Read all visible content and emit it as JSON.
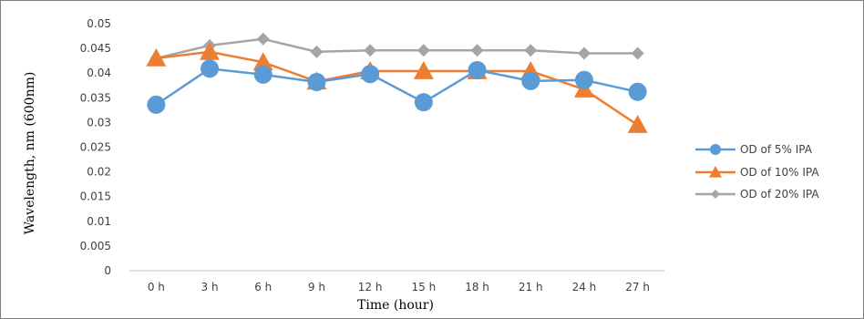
{
  "chart_data": {
    "type": "line",
    "title": "",
    "xlabel": "Time (hour)",
    "ylabel": "Wavelength, nm (600nm)",
    "categories": [
      "0 h",
      "3 h",
      "6 h",
      "9 h",
      "12 h",
      "15 h",
      "18 h",
      "21 h",
      "24 h",
      "27 h"
    ],
    "ylim": [
      0,
      0.05
    ],
    "yticks": [
      "0",
      "0.005",
      "0.01",
      "0.015",
      "0.02",
      "0.025",
      "0.03",
      "0.035",
      "0.04",
      "0.045",
      "0.05"
    ],
    "grid": false,
    "legend_position": "right",
    "series": [
      {
        "name": "OD of 5% IPA",
        "color": "#5b9bd5",
        "marker": "circle",
        "values": [
          0.0336,
          0.0409,
          0.0397,
          0.0382,
          0.0398,
          0.0341,
          0.0406,
          0.0384,
          0.0386,
          0.0362
        ]
      },
      {
        "name": "OD of 10% IPA",
        "color": "#ed7d31",
        "marker": "triangle",
        "values": [
          0.043,
          0.0443,
          0.0422,
          0.0383,
          0.0404,
          0.0404,
          0.0404,
          0.0404,
          0.0367,
          0.0295
        ]
      },
      {
        "name": "OD of 20% IPA",
        "color": "#a5a5a5",
        "marker": "diamond",
        "values": [
          0.043,
          0.0456,
          0.0469,
          0.0443,
          0.0446,
          0.0446,
          0.0446,
          0.0446,
          0.044,
          0.044
        ]
      }
    ]
  }
}
